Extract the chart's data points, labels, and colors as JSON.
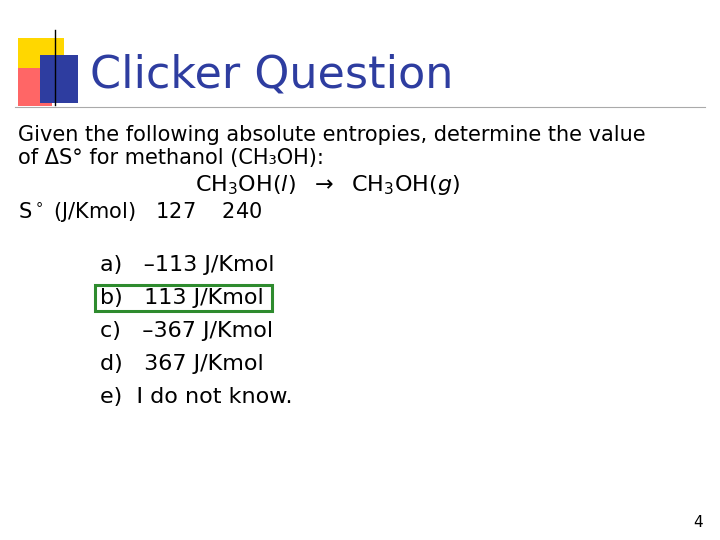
{
  "title": "Clicker Question",
  "title_color": "#2E3DA0",
  "background_color": "#ffffff",
  "slide_number": "4",
  "body_text_line1": "Given the following absolute entropies, determine the value",
  "body_text_line2": "of ΔS° for methanol (CH₃OH):",
  "answers": [
    {
      "label": "a)   ",
      "text": "–113 J/Kmol",
      "boxed": false
    },
    {
      "label": "b)   ",
      "text": "113 J/Kmol",
      "boxed": true
    },
    {
      "label": "c)   ",
      "text": "–367 J/Kmol",
      "boxed": false
    },
    {
      "label": "d)   ",
      "text": "367 J/Kmol",
      "boxed": false
    },
    {
      "label": "e)  ",
      "text": "I do not know.",
      "boxed": false
    }
  ],
  "box_color": "#2E8B2E",
  "icon_yellow": "#FFD700",
  "icon_red_start": "#FF8888",
  "icon_red_end": "#FF2222",
  "icon_blue": "#2E3DA0",
  "separator_line_color": "#AAAAAA",
  "title_font_size": 32,
  "body_font_size": 15,
  "answer_font_size": 16
}
